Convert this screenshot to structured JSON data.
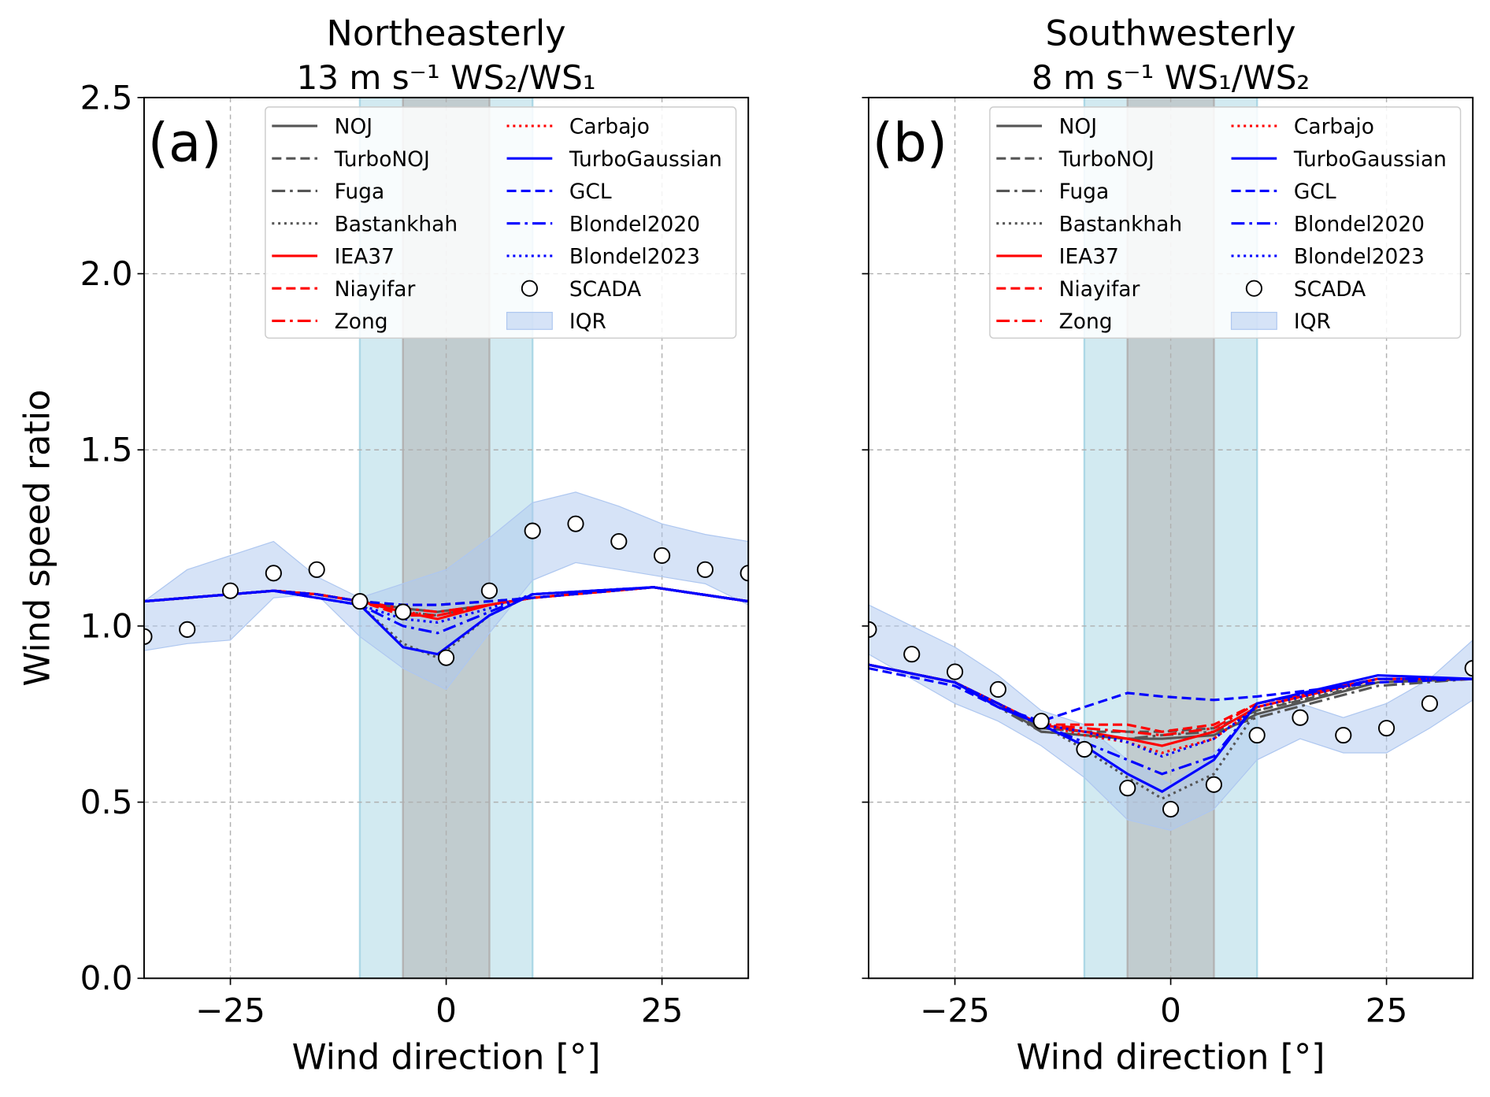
{
  "chart_data": [
    {
      "type": "line",
      "title": "Northeasterly",
      "subtitle": "13 m s⁻¹  WS₂/WS₁",
      "panel_label": "(a)",
      "xlabel": "Wind direction [°]",
      "ylabel": "Wind speed ratio",
      "xlim": [
        -35,
        35
      ],
      "ylim": [
        0,
        2.5
      ],
      "xticks": [
        {
          "value": -25,
          "label": "−25"
        },
        0,
        25
      ],
      "yticks": [
        {
          "value": 0,
          "label": "0.0"
        },
        0.5,
        {
          "value": 1,
          "label": "1.0"
        },
        1.5,
        {
          "value": 2,
          "label": "2.0"
        },
        2.5
      ],
      "ytick_labels": true,
      "grid": true,
      "legend": "upper right",
      "spans": [
        {
          "range": [
            -10,
            10
          ],
          "color": "#add8e6"
        },
        {
          "range": [
            -5,
            5
          ],
          "color": "#b3b3b3"
        }
      ],
      "series": [
        {
          "name": "NOJ",
          "color": "#555555",
          "linestyle": "solid",
          "x": [
            -35,
            -25,
            -20,
            -15,
            -10,
            -5,
            -1,
            5,
            10,
            24,
            35
          ],
          "values": [
            1.07,
            1.09,
            1.1,
            1.09,
            1.07,
            1.05,
            1.04,
            1.06,
            1.08,
            1.11,
            1.07
          ]
        },
        {
          "name": "TurboNOJ",
          "color": "#555555",
          "linestyle": "dashed",
          "x": [
            -35,
            -25,
            -20,
            -15,
            -10,
            -5,
            -1,
            5,
            10,
            24,
            35
          ],
          "values": [
            1.07,
            1.09,
            1.1,
            1.09,
            1.07,
            1.06,
            1.06,
            1.07,
            1.08,
            1.11,
            1.07
          ]
        },
        {
          "name": "Fuga",
          "color": "#555555",
          "linestyle": "dashdot",
          "x": [
            -35,
            -25,
            -20,
            -15,
            -10,
            -5,
            -1,
            5,
            10,
            24,
            35
          ],
          "values": [
            1.07,
            1.09,
            1.1,
            1.09,
            1.07,
            1.04,
            1.03,
            1.06,
            1.08,
            1.11,
            1.07
          ]
        },
        {
          "name": "Bastankhah",
          "color": "#555555",
          "linestyle": "dotted",
          "x": [
            -35,
            -25,
            -20,
            -15,
            -10,
            -5,
            -1,
            5,
            10,
            24,
            35
          ],
          "values": [
            1.07,
            1.09,
            1.1,
            1.08,
            1.06,
            0.95,
            0.91,
            1.03,
            1.09,
            1.11,
            1.07
          ]
        },
        {
          "name": "IEA37",
          "color": "#ff0000",
          "linestyle": "solid",
          "x": [
            -35,
            -25,
            -20,
            -15,
            -10,
            -5,
            -1,
            5,
            10,
            24,
            35
          ],
          "values": [
            1.07,
            1.09,
            1.1,
            1.09,
            1.07,
            1.04,
            1.02,
            1.06,
            1.08,
            1.11,
            1.07
          ]
        },
        {
          "name": "Niayifar",
          "color": "#ff0000",
          "linestyle": "dashed",
          "x": [
            -35,
            -25,
            -20,
            -15,
            -10,
            -5,
            -1,
            5,
            10,
            24,
            35
          ],
          "values": [
            1.07,
            1.09,
            1.1,
            1.09,
            1.07,
            1.03,
            1.03,
            1.06,
            1.08,
            1.11,
            1.07
          ]
        },
        {
          "name": "Zong",
          "color": "#ff0000",
          "linestyle": "dashdot",
          "x": [
            -35,
            -25,
            -20,
            -15,
            -10,
            -5,
            -1,
            5,
            10,
            24,
            35
          ],
          "values": [
            1.07,
            1.09,
            1.1,
            1.09,
            1.07,
            1.05,
            1.04,
            1.06,
            1.08,
            1.11,
            1.07
          ]
        },
        {
          "name": "Carbajo",
          "color": "#ff0000",
          "linestyle": "dotted",
          "x": [
            -35,
            -25,
            -20,
            -15,
            -10,
            -5,
            -1,
            5,
            10,
            24,
            35
          ],
          "values": [
            1.07,
            1.09,
            1.1,
            1.09,
            1.07,
            1.04,
            1.03,
            1.06,
            1.08,
            1.11,
            1.07
          ]
        },
        {
          "name": "TurboGaussian",
          "color": "#0000ff",
          "linestyle": "solid",
          "x": [
            -35,
            -25,
            -20,
            -15,
            -10,
            -5,
            -1,
            5,
            10,
            24,
            35
          ],
          "values": [
            1.07,
            1.09,
            1.1,
            1.08,
            1.06,
            0.94,
            0.92,
            1.03,
            1.09,
            1.11,
            1.07
          ]
        },
        {
          "name": "GCL",
          "color": "#0000ff",
          "linestyle": "dashed",
          "x": [
            -35,
            -25,
            -20,
            -15,
            -10,
            -5,
            -1,
            5,
            10,
            24,
            35
          ],
          "values": [
            1.07,
            1.09,
            1.1,
            1.09,
            1.07,
            1.06,
            1.06,
            1.07,
            1.08,
            1.11,
            1.07
          ]
        },
        {
          "name": "Blondel2020",
          "color": "#0000ff",
          "linestyle": "dashdot",
          "x": [
            -35,
            -25,
            -20,
            -15,
            -10,
            -5,
            -1,
            5,
            10,
            24,
            35
          ],
          "values": [
            1.07,
            1.09,
            1.1,
            1.08,
            1.06,
            1.0,
            0.98,
            1.04,
            1.09,
            1.11,
            1.07
          ]
        },
        {
          "name": "Blondel2023",
          "color": "#0000ff",
          "linestyle": "dotted",
          "x": [
            -35,
            -25,
            -20,
            -15,
            -10,
            -5,
            -1,
            5,
            10,
            24,
            35
          ],
          "values": [
            1.07,
            1.09,
            1.1,
            1.08,
            1.06,
            1.02,
            1.01,
            1.05,
            1.09,
            1.11,
            1.07
          ]
        },
        {
          "name": "SCADA",
          "type": "scatter",
          "color": "#ffffff",
          "x": [
            -35,
            -30,
            -25,
            -20,
            -15,
            -10,
            -5,
            0,
            5,
            10,
            15,
            20,
            25,
            30,
            35
          ],
          "values": [
            0.97,
            0.99,
            1.1,
            1.15,
            1.16,
            1.07,
            1.04,
            0.91,
            1.1,
            1.27,
            1.29,
            1.24,
            1.2,
            1.16,
            1.15
          ]
        },
        {
          "name": "IQR",
          "type": "band",
          "color": "#aec7f0",
          "x": [
            -35,
            -30,
            -25,
            -20,
            -15,
            -10,
            -5,
            0,
            5,
            10,
            15,
            20,
            25,
            30,
            35
          ],
          "lower": [
            0.93,
            0.95,
            0.96,
            1.08,
            1.09,
            0.97,
            0.88,
            0.82,
            0.98,
            1.13,
            1.18,
            1.16,
            1.14,
            1.12,
            1.06
          ],
          "upper": [
            1.07,
            1.16,
            1.2,
            1.24,
            1.14,
            1.08,
            1.12,
            1.16,
            1.25,
            1.35,
            1.38,
            1.34,
            1.29,
            1.26,
            1.24
          ]
        }
      ]
    },
    {
      "type": "line",
      "title": "Southwesterly",
      "subtitle": "8 m s⁻¹  WS₁/WS₂",
      "panel_label": "(b)",
      "xlabel": "Wind direction [°]",
      "xlim": [
        -35,
        35
      ],
      "ylim": [
        0,
        2.5
      ],
      "xticks": [
        {
          "value": -25,
          "label": "−25"
        },
        0,
        25
      ],
      "yticks": [
        0,
        0.5,
        1,
        1.5,
        2,
        2.5
      ],
      "ytick_labels": false,
      "grid": true,
      "legend": "upper right",
      "spans": [
        {
          "range": [
            -10,
            10
          ],
          "color": "#add8e6"
        },
        {
          "range": [
            -5,
            5
          ],
          "color": "#b3b3b3"
        }
      ],
      "series": [
        {
          "name": "NOJ",
          "color": "#555555",
          "linestyle": "solid",
          "x": [
            -35,
            -25,
            -20,
            -15,
            -10,
            -5,
            -1,
            5,
            10,
            24,
            35
          ],
          "values": [
            0.89,
            0.84,
            0.78,
            0.7,
            0.69,
            0.68,
            0.68,
            0.69,
            0.75,
            0.84,
            0.85
          ]
        },
        {
          "name": "TurboNOJ",
          "color": "#555555",
          "linestyle": "dashed",
          "x": [
            -35,
            -25,
            -20,
            -15,
            -10,
            -5,
            -1,
            5,
            10,
            24,
            35
          ],
          "values": [
            0.89,
            0.84,
            0.78,
            0.71,
            0.7,
            0.7,
            0.7,
            0.71,
            0.76,
            0.84,
            0.85
          ]
        },
        {
          "name": "Fuga",
          "color": "#555555",
          "linestyle": "dashdot",
          "x": [
            -35,
            -25,
            -20,
            -15,
            -10,
            -5,
            -1,
            5,
            10,
            24,
            35
          ],
          "values": [
            0.89,
            0.84,
            0.77,
            0.7,
            0.69,
            0.68,
            0.69,
            0.7,
            0.74,
            0.83,
            0.85
          ]
        },
        {
          "name": "Bastankhah",
          "color": "#555555",
          "linestyle": "dotted",
          "x": [
            -35,
            -25,
            -20,
            -15,
            -10,
            -5,
            -1,
            5,
            10,
            24,
            35
          ],
          "values": [
            0.89,
            0.84,
            0.78,
            0.72,
            0.65,
            0.57,
            0.51,
            0.58,
            0.76,
            0.85,
            0.85
          ]
        },
        {
          "name": "IEA37",
          "color": "#ff0000",
          "linestyle": "solid",
          "x": [
            -35,
            -25,
            -20,
            -15,
            -10,
            -5,
            -1,
            5,
            10,
            24,
            35
          ],
          "values": [
            0.89,
            0.84,
            0.78,
            0.72,
            0.7,
            0.68,
            0.66,
            0.7,
            0.77,
            0.85,
            0.85
          ]
        },
        {
          "name": "Niayifar",
          "color": "#ff0000",
          "linestyle": "dashed",
          "x": [
            -35,
            -25,
            -20,
            -15,
            -10,
            -5,
            -1,
            5,
            10,
            24,
            35
          ],
          "values": [
            0.89,
            0.84,
            0.78,
            0.72,
            0.72,
            0.72,
            0.7,
            0.72,
            0.78,
            0.85,
            0.85
          ]
        },
        {
          "name": "Zong",
          "color": "#ff0000",
          "linestyle": "dashdot",
          "x": [
            -35,
            -25,
            -20,
            -15,
            -10,
            -5,
            -1,
            5,
            10,
            24,
            35
          ],
          "values": [
            0.89,
            0.84,
            0.78,
            0.72,
            0.71,
            0.7,
            0.69,
            0.71,
            0.78,
            0.85,
            0.85
          ]
        },
        {
          "name": "Carbajo",
          "color": "#ff0000",
          "linestyle": "dotted",
          "x": [
            -35,
            -25,
            -20,
            -15,
            -10,
            -5,
            -1,
            5,
            10,
            24,
            35
          ],
          "values": [
            0.89,
            0.84,
            0.78,
            0.72,
            0.69,
            0.67,
            0.64,
            0.68,
            0.77,
            0.85,
            0.85
          ]
        },
        {
          "name": "TurboGaussian",
          "color": "#0000ff",
          "linestyle": "solid",
          "x": [
            -35,
            -25,
            -20,
            -15,
            -10,
            -5,
            -1,
            5,
            10,
            24,
            35
          ],
          "values": [
            0.89,
            0.84,
            0.77,
            0.72,
            0.66,
            0.58,
            0.53,
            0.62,
            0.78,
            0.86,
            0.85
          ]
        },
        {
          "name": "GCL",
          "color": "#0000ff",
          "linestyle": "dashed",
          "x": [
            -35,
            -25,
            -20,
            -15,
            -10,
            -5,
            -1,
            5,
            10,
            24,
            35
          ],
          "values": [
            0.88,
            0.83,
            0.77,
            0.73,
            0.77,
            0.81,
            0.8,
            0.79,
            0.8,
            0.84,
            0.85
          ]
        },
        {
          "name": "Blondel2020",
          "color": "#0000ff",
          "linestyle": "dashdot",
          "x": [
            -35,
            -25,
            -20,
            -15,
            -10,
            -5,
            -1,
            5,
            10,
            24,
            35
          ],
          "values": [
            0.89,
            0.84,
            0.78,
            0.72,
            0.67,
            0.62,
            0.58,
            0.63,
            0.78,
            0.85,
            0.85
          ]
        },
        {
          "name": "Blondel2023",
          "color": "#0000ff",
          "linestyle": "dotted",
          "x": [
            -35,
            -25,
            -20,
            -15,
            -10,
            -5,
            -1,
            5,
            10,
            24,
            35
          ],
          "values": [
            0.89,
            0.84,
            0.78,
            0.72,
            0.7,
            0.67,
            0.63,
            0.68,
            0.77,
            0.85,
            0.85
          ]
        },
        {
          "name": "SCADA",
          "type": "scatter",
          "color": "#ffffff",
          "x": [
            -35,
            -30,
            -25,
            -20,
            -15,
            -10,
            -5,
            0,
            5,
            10,
            15,
            20,
            25,
            30,
            35
          ],
          "values": [
            0.99,
            0.92,
            0.87,
            0.82,
            0.73,
            0.65,
            0.54,
            0.48,
            0.55,
            0.69,
            0.74,
            0.69,
            0.71,
            0.78,
            0.88
          ]
        },
        {
          "name": "IQR",
          "type": "band",
          "color": "#aec7f0",
          "x": [
            -35,
            -30,
            -25,
            -20,
            -15,
            -10,
            -5,
            0,
            5,
            10,
            15,
            20,
            25,
            30,
            35
          ],
          "lower": [
            0.92,
            0.85,
            0.78,
            0.73,
            0.66,
            0.57,
            0.45,
            0.42,
            0.48,
            0.62,
            0.68,
            0.64,
            0.64,
            0.71,
            0.79
          ],
          "upper": [
            1.06,
            1.0,
            0.94,
            0.86,
            0.76,
            0.72,
            0.62,
            0.55,
            0.64,
            0.75,
            0.78,
            0.74,
            0.78,
            0.85,
            0.96
          ]
        }
      ]
    }
  ]
}
